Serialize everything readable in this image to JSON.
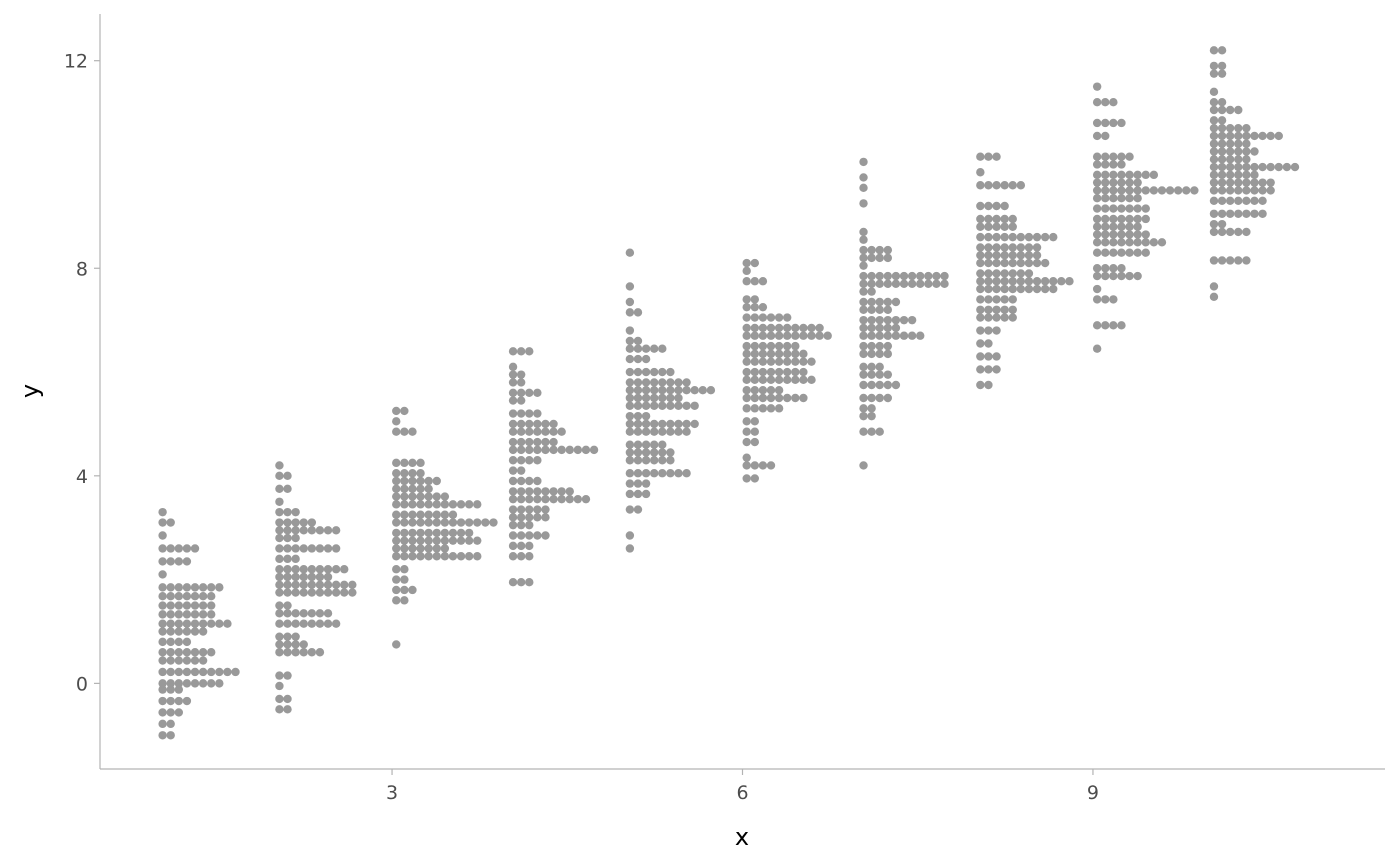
{
  "chart_data": {
    "type": "dotplot",
    "xlabel": "x",
    "ylabel": "y",
    "xlim": [
      0.5,
      11.5
    ],
    "ylim": [
      -1.65,
      12.9
    ],
    "x_ticks": [
      3,
      6,
      9
    ],
    "y_ticks": [
      0,
      4,
      8,
      12
    ],
    "grid": false,
    "legend": "none",
    "dot_color": "#999999",
    "axis_color": "#b3b3b3",
    "binwidth": 0.218,
    "groups": [
      {
        "x": 1,
        "bins": [
          {
            "y": -1.0,
            "count": 2
          },
          {
            "y": -0.78,
            "count": 2
          },
          {
            "y": -0.56,
            "count": 3
          },
          {
            "y": -0.34,
            "count": 4
          },
          {
            "y": -0.12,
            "count": 3
          },
          {
            "y": 0.0,
            "count": 8
          },
          {
            "y": 0.22,
            "count": 10
          },
          {
            "y": 0.44,
            "count": 6
          },
          {
            "y": 0.6,
            "count": 7
          },
          {
            "y": 0.8,
            "count": 4
          },
          {
            "y": 1.0,
            "count": 6
          },
          {
            "y": 1.15,
            "count": 9
          },
          {
            "y": 1.33,
            "count": 7
          },
          {
            "y": 1.5,
            "count": 7
          },
          {
            "y": 1.68,
            "count": 7
          },
          {
            "y": 1.85,
            "count": 8
          },
          {
            "y": 2.1,
            "count": 1
          },
          {
            "y": 2.35,
            "count": 4
          },
          {
            "y": 2.6,
            "count": 5
          },
          {
            "y": 2.85,
            "count": 1
          },
          {
            "y": 3.1,
            "count": 2
          },
          {
            "y": 3.3,
            "count": 1
          }
        ]
      },
      {
        "x": 2,
        "bins": [
          {
            "y": -0.5,
            "count": 2
          },
          {
            "y": -0.3,
            "count": 2
          },
          {
            "y": -0.05,
            "count": 1
          },
          {
            "y": 0.15,
            "count": 2
          },
          {
            "y": 0.6,
            "count": 6
          },
          {
            "y": 0.75,
            "count": 4
          },
          {
            "y": 0.9,
            "count": 3
          },
          {
            "y": 1.15,
            "count": 8
          },
          {
            "y": 1.35,
            "count": 7
          },
          {
            "y": 1.5,
            "count": 2
          },
          {
            "y": 1.75,
            "count": 10
          },
          {
            "y": 1.9,
            "count": 10
          },
          {
            "y": 2.05,
            "count": 7
          },
          {
            "y": 2.2,
            "count": 9
          },
          {
            "y": 2.4,
            "count": 3
          },
          {
            "y": 2.6,
            "count": 8
          },
          {
            "y": 2.8,
            "count": 3
          },
          {
            "y": 2.95,
            "count": 8
          },
          {
            "y": 3.1,
            "count": 5
          },
          {
            "y": 3.3,
            "count": 3
          },
          {
            "y": 3.5,
            "count": 1
          },
          {
            "y": 3.75,
            "count": 2
          },
          {
            "y": 4.0,
            "count": 2
          },
          {
            "y": 4.2,
            "count": 1
          }
        ]
      },
      {
        "x": 3,
        "bins": [
          {
            "y": 0.75,
            "count": 1
          },
          {
            "y": 1.6,
            "count": 2
          },
          {
            "y": 1.8,
            "count": 3
          },
          {
            "y": 2.0,
            "count": 2
          },
          {
            "y": 2.2,
            "count": 2
          },
          {
            "y": 2.45,
            "count": 11
          },
          {
            "y": 2.6,
            "count": 7
          },
          {
            "y": 2.75,
            "count": 11
          },
          {
            "y": 2.9,
            "count": 10
          },
          {
            "y": 3.1,
            "count": 13
          },
          {
            "y": 3.25,
            "count": 8
          },
          {
            "y": 3.45,
            "count": 11
          },
          {
            "y": 3.6,
            "count": 7
          },
          {
            "y": 3.75,
            "count": 5
          },
          {
            "y": 3.9,
            "count": 6
          },
          {
            "y": 4.05,
            "count": 4
          },
          {
            "y": 4.25,
            "count": 4
          },
          {
            "y": 4.85,
            "count": 3
          },
          {
            "y": 5.05,
            "count": 1
          },
          {
            "y": 5.25,
            "count": 2
          }
        ]
      },
      {
        "x": 4,
        "bins": [
          {
            "y": 1.95,
            "count": 3
          },
          {
            "y": 2.45,
            "count": 3
          },
          {
            "y": 2.65,
            "count": 3
          },
          {
            "y": 2.85,
            "count": 5
          },
          {
            "y": 3.05,
            "count": 3
          },
          {
            "y": 3.2,
            "count": 5
          },
          {
            "y": 3.35,
            "count": 5
          },
          {
            "y": 3.55,
            "count": 10
          },
          {
            "y": 3.7,
            "count": 8
          },
          {
            "y": 3.9,
            "count": 4
          },
          {
            "y": 4.1,
            "count": 2
          },
          {
            "y": 4.3,
            "count": 4
          },
          {
            "y": 4.5,
            "count": 11
          },
          {
            "y": 4.65,
            "count": 6
          },
          {
            "y": 4.85,
            "count": 7
          },
          {
            "y": 5.0,
            "count": 6
          },
          {
            "y": 5.2,
            "count": 4
          },
          {
            "y": 5.45,
            "count": 2
          },
          {
            "y": 5.6,
            "count": 4
          },
          {
            "y": 5.8,
            "count": 2
          },
          {
            "y": 5.95,
            "count": 2
          },
          {
            "y": 6.1,
            "count": 1
          },
          {
            "y": 6.4,
            "count": 3
          }
        ]
      },
      {
        "x": 5,
        "bins": [
          {
            "y": 2.6,
            "count": 1
          },
          {
            "y": 2.85,
            "count": 1
          },
          {
            "y": 3.35,
            "count": 2
          },
          {
            "y": 3.65,
            "count": 3
          },
          {
            "y": 3.85,
            "count": 3
          },
          {
            "y": 4.05,
            "count": 8
          },
          {
            "y": 4.3,
            "count": 6
          },
          {
            "y": 4.45,
            "count": 6
          },
          {
            "y": 4.6,
            "count": 5
          },
          {
            "y": 4.85,
            "count": 8
          },
          {
            "y": 5.0,
            "count": 9
          },
          {
            "y": 5.15,
            "count": 3
          },
          {
            "y": 5.35,
            "count": 9
          },
          {
            "y": 5.5,
            "count": 7
          },
          {
            "y": 5.65,
            "count": 11
          },
          {
            "y": 5.8,
            "count": 8
          },
          {
            "y": 6.0,
            "count": 6
          },
          {
            "y": 6.25,
            "count": 3
          },
          {
            "y": 6.45,
            "count": 5
          },
          {
            "y": 6.6,
            "count": 2
          },
          {
            "y": 6.8,
            "count": 1
          },
          {
            "y": 7.15,
            "count": 2
          },
          {
            "y": 7.35,
            "count": 1
          },
          {
            "y": 7.65,
            "count": 1
          },
          {
            "y": 8.3,
            "count": 1
          }
        ]
      },
      {
        "x": 6,
        "bins": [
          {
            "y": 3.95,
            "count": 2
          },
          {
            "y": 4.2,
            "count": 4
          },
          {
            "y": 4.35,
            "count": 1
          },
          {
            "y": 4.65,
            "count": 2
          },
          {
            "y": 4.85,
            "count": 2
          },
          {
            "y": 5.05,
            "count": 2
          },
          {
            "y": 5.3,
            "count": 5
          },
          {
            "y": 5.5,
            "count": 8
          },
          {
            "y": 5.65,
            "count": 5
          },
          {
            "y": 5.85,
            "count": 9
          },
          {
            "y": 6.0,
            "count": 8
          },
          {
            "y": 6.2,
            "count": 9
          },
          {
            "y": 6.35,
            "count": 8
          },
          {
            "y": 6.5,
            "count": 7
          },
          {
            "y": 6.7,
            "count": 11
          },
          {
            "y": 6.85,
            "count": 10
          },
          {
            "y": 7.05,
            "count": 6
          },
          {
            "y": 7.25,
            "count": 3
          },
          {
            "y": 7.4,
            "count": 2
          },
          {
            "y": 7.75,
            "count": 3
          },
          {
            "y": 7.95,
            "count": 1
          },
          {
            "y": 8.1,
            "count": 2
          }
        ]
      },
      {
        "x": 7,
        "bins": [
          {
            "y": 4.2,
            "count": 1
          },
          {
            "y": 4.85,
            "count": 3
          },
          {
            "y": 5.15,
            "count": 2
          },
          {
            "y": 5.3,
            "count": 2
          },
          {
            "y": 5.5,
            "count": 4
          },
          {
            "y": 5.75,
            "count": 5
          },
          {
            "y": 5.95,
            "count": 4
          },
          {
            "y": 6.1,
            "count": 3
          },
          {
            "y": 6.35,
            "count": 4
          },
          {
            "y": 6.5,
            "count": 4
          },
          {
            "y": 6.7,
            "count": 8
          },
          {
            "y": 6.85,
            "count": 5
          },
          {
            "y": 7.0,
            "count": 7
          },
          {
            "y": 7.2,
            "count": 4
          },
          {
            "y": 7.35,
            "count": 5
          },
          {
            "y": 7.55,
            "count": 2
          },
          {
            "y": 7.7,
            "count": 11
          },
          {
            "y": 7.85,
            "count": 11
          },
          {
            "y": 8.05,
            "count": 1
          },
          {
            "y": 8.2,
            "count": 4
          },
          {
            "y": 8.35,
            "count": 4
          },
          {
            "y": 8.55,
            "count": 1
          },
          {
            "y": 8.7,
            "count": 1
          },
          {
            "y": 9.25,
            "count": 1
          },
          {
            "y": 9.55,
            "count": 1
          },
          {
            "y": 9.75,
            "count": 1
          },
          {
            "y": 10.05,
            "count": 1
          }
        ]
      },
      {
        "x": 8,
        "bins": [
          {
            "y": 5.75,
            "count": 2
          },
          {
            "y": 6.05,
            "count": 3
          },
          {
            "y": 6.3,
            "count": 3
          },
          {
            "y": 6.55,
            "count": 2
          },
          {
            "y": 6.8,
            "count": 3
          },
          {
            "y": 7.05,
            "count": 5
          },
          {
            "y": 7.2,
            "count": 5
          },
          {
            "y": 7.4,
            "count": 5
          },
          {
            "y": 7.6,
            "count": 10
          },
          {
            "y": 7.75,
            "count": 12
          },
          {
            "y": 7.9,
            "count": 7
          },
          {
            "y": 8.1,
            "count": 9
          },
          {
            "y": 8.25,
            "count": 8
          },
          {
            "y": 8.4,
            "count": 8
          },
          {
            "y": 8.6,
            "count": 10
          },
          {
            "y": 8.8,
            "count": 5
          },
          {
            "y": 8.95,
            "count": 5
          },
          {
            "y": 9.2,
            "count": 4
          },
          {
            "y": 9.6,
            "count": 6
          },
          {
            "y": 9.85,
            "count": 1
          },
          {
            "y": 10.15,
            "count": 3
          }
        ]
      },
      {
        "x": 9,
        "bins": [
          {
            "y": 6.45,
            "count": 1
          },
          {
            "y": 6.9,
            "count": 4
          },
          {
            "y": 7.4,
            "count": 3
          },
          {
            "y": 7.6,
            "count": 1
          },
          {
            "y": 7.85,
            "count": 6
          },
          {
            "y": 8.0,
            "count": 4
          },
          {
            "y": 8.3,
            "count": 7
          },
          {
            "y": 8.5,
            "count": 9
          },
          {
            "y": 8.65,
            "count": 7
          },
          {
            "y": 8.8,
            "count": 6
          },
          {
            "y": 8.95,
            "count": 7
          },
          {
            "y": 9.15,
            "count": 7
          },
          {
            "y": 9.35,
            "count": 6
          },
          {
            "y": 9.5,
            "count": 13
          },
          {
            "y": 9.65,
            "count": 6
          },
          {
            "y": 9.8,
            "count": 8
          },
          {
            "y": 10.0,
            "count": 4
          },
          {
            "y": 10.15,
            "count": 5
          },
          {
            "y": 10.55,
            "count": 2
          },
          {
            "y": 10.8,
            "count": 4
          },
          {
            "y": 11.2,
            "count": 3
          },
          {
            "y": 11.5,
            "count": 1
          }
        ]
      },
      {
        "x": 10,
        "bins": [
          {
            "y": 7.45,
            "count": 1
          },
          {
            "y": 7.65,
            "count": 1
          },
          {
            "y": 8.15,
            "count": 5
          },
          {
            "y": 8.7,
            "count": 5
          },
          {
            "y": 8.85,
            "count": 2
          },
          {
            "y": 9.05,
            "count": 7
          },
          {
            "y": 9.3,
            "count": 7
          },
          {
            "y": 9.5,
            "count": 8
          },
          {
            "y": 9.65,
            "count": 8
          },
          {
            "y": 9.8,
            "count": 6
          },
          {
            "y": 9.95,
            "count": 11
          },
          {
            "y": 10.1,
            "count": 5
          },
          {
            "y": 10.25,
            "count": 6
          },
          {
            "y": 10.4,
            "count": 5
          },
          {
            "y": 10.55,
            "count": 9
          },
          {
            "y": 10.7,
            "count": 5
          },
          {
            "y": 10.85,
            "count": 2
          },
          {
            "y": 11.05,
            "count": 4
          },
          {
            "y": 11.2,
            "count": 2
          },
          {
            "y": 11.4,
            "count": 1
          },
          {
            "y": 11.75,
            "count": 2
          },
          {
            "y": 11.9,
            "count": 2
          },
          {
            "y": 12.2,
            "count": 2
          }
        ]
      }
    ]
  }
}
